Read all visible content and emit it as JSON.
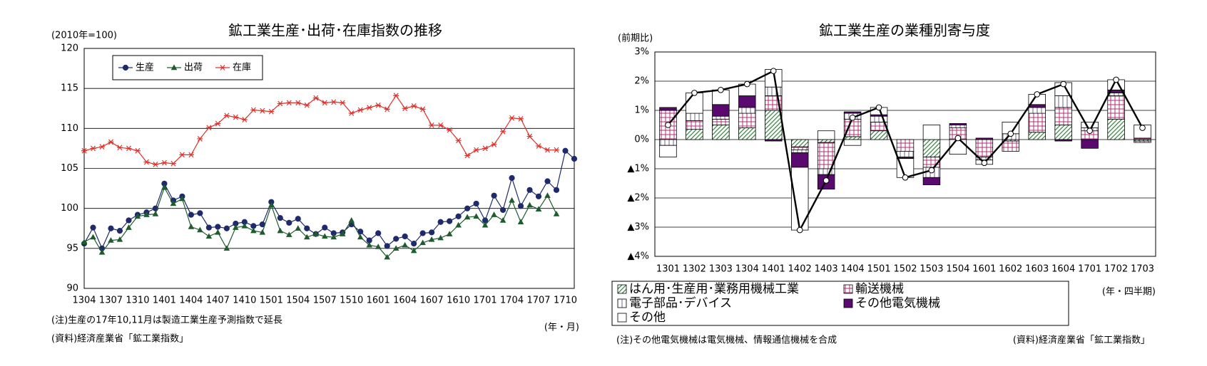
{
  "chart_data": [
    {
      "type": "line",
      "title": "鉱工業生産･出荷･在庫指数の推移",
      "y_unit_label": "(2010年=100)",
      "x_label": "(年・月)",
      "notes": [
        "(注)生産の17年10,11月は製造工業生産予測指数で延長",
        "(資料)経済産業省「鉱工業指数」"
      ],
      "categories": [
        "1304",
        null,
        null,
        "1307",
        null,
        null,
        "1310",
        null,
        null,
        "1401",
        null,
        null,
        "1404",
        null,
        null,
        "1407",
        null,
        null,
        "1410",
        null,
        null,
        "1501",
        null,
        null,
        "1504",
        null,
        null,
        "1507",
        null,
        null,
        "1510",
        null,
        null,
        "1601",
        null,
        null,
        "1604",
        null,
        null,
        "1607",
        null,
        null,
        "1610",
        null,
        null,
        "1701",
        null,
        null,
        "1704",
        null,
        null,
        "1707",
        null,
        null,
        "1710",
        null
      ],
      "series": [
        {
          "name": "生産",
          "color": "#1f2a6b",
          "marker": "circle",
          "values": [
            95.6,
            97.6,
            95.0,
            97.5,
            97.2,
            98.5,
            99.2,
            99.5,
            100.0,
            103.1,
            101.0,
            101.5,
            99.2,
            99.4,
            97.6,
            97.7,
            97.5,
            98.1,
            98.3,
            97.8,
            98.0,
            100.8,
            98.8,
            98.2,
            98.7,
            97.5,
            96.8,
            97.6,
            96.9,
            97.0,
            98.0,
            97.1,
            96.0,
            96.9,
            95.3,
            96.2,
            96.5,
            95.6,
            96.9,
            97.0,
            98.3,
            98.4,
            99.0,
            100.0,
            100.6,
            98.5,
            101.6,
            99.8,
            103.8,
            100.3,
            102.3,
            101.5,
            103.4,
            102.3,
            107.2,
            106.2
          ]
        },
        {
          "name": "出荷",
          "color": "#1e5c2e",
          "marker": "triangle",
          "values": [
            95.8,
            96.4,
            94.5,
            96.0,
            96.1,
            97.6,
            99.0,
            99.2,
            99.3,
            102.6,
            100.6,
            101.2,
            97.7,
            97.3,
            96.5,
            97.0,
            95.0,
            97.6,
            97.8,
            97.2,
            97.0,
            100.4,
            97.2,
            96.7,
            97.5,
            96.4,
            96.8,
            96.5,
            96.4,
            96.8,
            98.5,
            96.4,
            95.4,
            95.2,
            93.9,
            95.0,
            95.4,
            94.7,
            95.7,
            96.1,
            96.3,
            96.8,
            97.9,
            98.9,
            99.0,
            97.9,
            99.2,
            98.5,
            101.0,
            98.3,
            100.4,
            99.9,
            101.6,
            99.3,
            null,
            null
          ]
        },
        {
          "name": "在庫",
          "color": "#e0302a",
          "marker": "star",
          "values": [
            107.2,
            107.5,
            107.7,
            108.3,
            107.6,
            107.5,
            107.2,
            105.8,
            105.5,
            105.7,
            105.6,
            106.7,
            106.7,
            108.7,
            110.1,
            110.6,
            111.6,
            111.4,
            111.1,
            112.3,
            112.2,
            112.1,
            113.1,
            113.2,
            113.2,
            112.9,
            113.8,
            113.2,
            113.3,
            113.2,
            111.9,
            112.3,
            112.6,
            112.9,
            112.4,
            114.1,
            112.5,
            112.8,
            112.4,
            110.4,
            110.4,
            109.8,
            108.5,
            106.6,
            107.3,
            107.5,
            108.0,
            109.6,
            111.3,
            111.2,
            109.0,
            107.8,
            107.3,
            107.3,
            null,
            null
          ]
        }
      ],
      "ylim": [
        90,
        120
      ],
      "yticks": [
        90,
        95,
        100,
        105,
        110,
        115,
        120
      ],
      "grid": true,
      "legend": "upper left"
    },
    {
      "type": "bar",
      "stacked": true,
      "title": "鉱工業生産の業種別寄与度",
      "y_unit_label": "(前期比)",
      "x_label": "(年・四半期)",
      "notes": [
        "(注)その他電気機械は電気機械、情報通信機械を合成",
        "(資料)経済産業省「鉱工業指数」"
      ],
      "categories": [
        "1301",
        "1302",
        "1303",
        "1304",
        "1401",
        "1402",
        "1403",
        "1404",
        "1501",
        "1502",
        "1503",
        "1504",
        "1601",
        "1602",
        "1603",
        "1604",
        "1701",
        "1702",
        "1703"
      ],
      "series": [
        {
          "name": "はん用･生産用･業務用機械工業",
          "color": "#2e8b3a",
          "pattern": "diagonal",
          "values": [
            0,
            0.35,
            0.5,
            0.4,
            1.0,
            -0.25,
            -0.1,
            0.1,
            0.3,
            0,
            -0.6,
            0,
            0,
            -0.05,
            0.25,
            0.5,
            0,
            0.7,
            -0.05
          ]
        },
        {
          "name": "輸送機械",
          "color": "#b0307a",
          "pattern": "grid",
          "values": [
            1.0,
            0.3,
            0.2,
            0.5,
            0.5,
            -0.1,
            -0.9,
            0.6,
            0.3,
            -0.4,
            -0.35,
            0.4,
            -0.6,
            -0.35,
            0.65,
            0.6,
            0.3,
            0.8,
            0.05
          ]
        },
        {
          "name": "電子部品･デバイス",
          "color": "#6a6a8a",
          "pattern": "vertical",
          "values": [
            -0.2,
            0.25,
            0.1,
            0.2,
            0.3,
            -0.1,
            -0.2,
            0.2,
            0.2,
            -0.2,
            -0.35,
            0.1,
            -0.1,
            0.2,
            0.2,
            0.4,
            0.1,
            0.1,
            -0.05
          ]
        },
        {
          "name": "その他電気機械",
          "color": "#5a0a6e",
          "pattern": "solid",
          "values": [
            0.1,
            0,
            0.4,
            0.4,
            -0.05,
            -0.5,
            -0.5,
            0.05,
            0.05,
            -0.05,
            -0.25,
            0.05,
            0.05,
            0,
            0.1,
            -0.05,
            -0.3,
            0.1,
            0
          ]
        },
        {
          "name": "その他",
          "color": "#ffffff",
          "pattern": "none",
          "values": [
            -0.4,
            0.7,
            0.5,
            0.4,
            0.6,
            -2.15,
            0.3,
            -0.2,
            0.25,
            -0.65,
            0.5,
            -0.5,
            -0.15,
            0.4,
            0.35,
            0.45,
            0.2,
            0.35,
            0.45
          ]
        }
      ],
      "total": {
        "color": "#000000",
        "values": [
          0.5,
          1.6,
          1.7,
          1.9,
          2.35,
          -3.1,
          -1.4,
          0.75,
          1.1,
          -1.3,
          -1.05,
          0.05,
          -0.8,
          0.2,
          1.55,
          1.9,
          0.3,
          2.05,
          0.4
        ]
      },
      "ylim": [
        -4,
        3
      ],
      "yticks": [
        {
          "value": -4,
          "label": "▲4%"
        },
        {
          "value": -3,
          "label": "▲3%"
        },
        {
          "value": -2,
          "label": "▲2%"
        },
        {
          "value": -1,
          "label": "▲1%"
        },
        {
          "value": 0,
          "label": "0%"
        },
        {
          "value": 1,
          "label": "1%"
        },
        {
          "value": 2,
          "label": "2%"
        },
        {
          "value": 3,
          "label": "3%"
        }
      ],
      "grid": true,
      "legend": "bottom"
    }
  ]
}
